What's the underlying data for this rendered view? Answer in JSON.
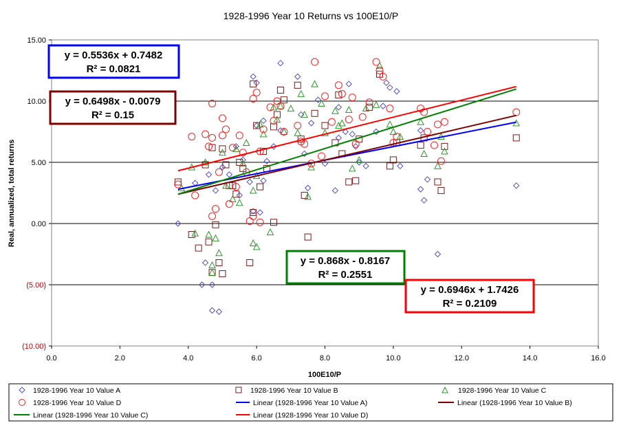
{
  "chart_data": {
    "type": "scatter",
    "title": "1928-1996 Year 10 Returns vs 100E10/P",
    "xlabel": "100E10/P",
    "ylabel": "Real, annualized, total returns",
    "xlim": [
      0,
      16
    ],
    "ylim": [
      -10,
      15
    ],
    "x_ticks": [
      {
        "v": 0,
        "label": "0.0"
      },
      {
        "v": 2,
        "label": "2.0"
      },
      {
        "v": 4,
        "label": "4.0"
      },
      {
        "v": 6,
        "label": "6.0"
      },
      {
        "v": 8,
        "label": "8.0"
      },
      {
        "v": 10,
        "label": "10.0"
      },
      {
        "v": 12,
        "label": "12.0"
      },
      {
        "v": 14,
        "label": "14.0"
      },
      {
        "v": 16,
        "label": "16.0"
      }
    ],
    "y_ticks": [
      {
        "v": 15,
        "label": "15.00"
      },
      {
        "v": 10,
        "label": "10.00"
      },
      {
        "v": 5,
        "label": "5.00"
      },
      {
        "v": 0,
        "label": "0.00"
      },
      {
        "v": -5,
        "label": "(5.00)"
      },
      {
        "v": -10,
        "label": "(10.00)"
      }
    ],
    "grid": "horizontal",
    "legend_position": "bottom",
    "colors": {
      "series_a": "#5050d0",
      "series_b": "#7b1a1a",
      "series_c": "#2a9a2a",
      "series_d": "#ff2020",
      "line_a": "#0000ff",
      "line_b": "#800000",
      "line_c": "#008000",
      "line_d": "#ff0000",
      "negative_tick": "#c00000"
    },
    "series": [
      {
        "name": "1928-1996 Year 10 Value A",
        "marker": "diamond",
        "color_key": "series_a",
        "x": [
          3.7,
          4.2,
          4.4,
          4.5,
          4.7,
          4.7,
          4.9,
          4.6,
          4.8,
          5.0,
          5.2,
          5.4,
          5.5,
          5.6,
          5.8,
          5.9,
          6.0,
          6.1,
          6.0,
          6.2,
          6.3,
          6.5,
          6.7,
          6.7,
          7.2,
          7.3,
          7.5,
          7.8,
          8.0,
          8.3,
          8.4,
          8.6,
          8.7,
          8.9,
          9.0,
          9.2,
          9.5,
          9.8,
          9.9,
          10.1,
          10.2,
          10.8,
          10.8,
          10.9,
          11.0,
          11.3,
          13.6,
          5.9,
          6.2,
          7.4,
          7.6,
          8.4,
          8.8,
          9.7
        ],
        "y": [
          0.0,
          3.3,
          -5.0,
          -3.2,
          -5.0,
          -7.1,
          -7.2,
          4.0,
          2.7,
          4.6,
          4.0,
          6.3,
          2.3,
          5.2,
          3.4,
          12.0,
          11.5,
          0.9,
          8.0,
          8.4,
          5.1,
          6.3,
          13.1,
          7.6,
          12.0,
          8.9,
          2.9,
          10.1,
          4.9,
          2.7,
          7.0,
          7.5,
          11.4,
          6.3,
          5.0,
          4.7,
          7.5,
          11.5,
          11.1,
          10.8,
          4.7,
          7.6,
          2.8,
          1.9,
          3.6,
          -2.5,
          3.1,
          1.0,
          3.5,
          5.7,
          8.2,
          9.5,
          7.3,
          9.6
        ]
      },
      {
        "name": "1928-1996 Year 10 Value B",
        "marker": "square",
        "color_key": "series_b",
        "x": [
          3.7,
          4.1,
          4.3,
          4.5,
          4.6,
          4.7,
          4.8,
          4.9,
          5.0,
          5.1,
          5.2,
          5.3,
          5.4,
          5.5,
          5.6,
          5.8,
          5.9,
          6.0,
          6.1,
          6.2,
          6.3,
          6.5,
          6.6,
          6.7,
          6.8,
          7.2,
          7.3,
          7.4,
          7.5,
          7.7,
          8.0,
          8.3,
          8.4,
          8.5,
          8.7,
          8.9,
          9.0,
          9.3,
          9.6,
          9.9,
          10.0,
          10.1,
          10.8,
          10.9,
          11.3,
          11.4,
          11.5,
          13.6,
          4.7,
          5.0,
          5.9,
          6.5
        ],
        "y": [
          3.4,
          -0.9,
          -2.0,
          4.8,
          -1.5,
          6.2,
          -0.1,
          -3.2,
          6.1,
          4.8,
          3.1,
          3.1,
          2.4,
          5.0,
          4.5,
          -3.2,
          11.4,
          8.0,
          3.0,
          5.9,
          4.5,
          7.9,
          8.9,
          10.9,
          10.1,
          11.3,
          6.9,
          2.3,
          -1.1,
          9.0,
          8.0,
          6.6,
          10.5,
          5.7,
          3.4,
          3.5,
          6.9,
          9.5,
          12.2,
          4.7,
          5.2,
          6.6,
          6.4,
          7.0,
          3.4,
          2.7,
          6.3,
          7.0,
          -4.0,
          -4.1,
          0.9,
          0.1
        ]
      },
      {
        "name": "1928-1996 Year 10 Value C",
        "marker": "triangle",
        "color_key": "series_c",
        "x": [
          3.8,
          4.1,
          4.2,
          4.5,
          4.6,
          4.7,
          4.8,
          4.9,
          5.0,
          5.1,
          5.3,
          5.4,
          5.5,
          5.6,
          5.7,
          5.9,
          6.0,
          6.1,
          6.2,
          6.4,
          6.5,
          6.6,
          6.7,
          6.8,
          7.0,
          7.2,
          7.3,
          7.4,
          7.6,
          7.7,
          7.9,
          8.0,
          8.3,
          8.4,
          8.5,
          8.7,
          8.8,
          9.0,
          9.2,
          9.5,
          9.6,
          9.9,
          10.0,
          10.2,
          10.8,
          10.9,
          11.3,
          11.4,
          11.5,
          13.6,
          4.7,
          5.9,
          6.0,
          7.5
        ],
        "y": [
          2.9,
          4.6,
          -0.8,
          5.0,
          -0.9,
          -3.4,
          -1.2,
          -2.4,
          5.8,
          3.1,
          2.0,
          6.1,
          1.7,
          4.9,
          6.6,
          -1.6,
          3.9,
          8.1,
          7.3,
          -0.7,
          9.5,
          8.5,
          9.6,
          7.5,
          9.4,
          7.4,
          10.6,
          8.9,
          4.6,
          11.4,
          9.8,
          7.4,
          9.2,
          8.0,
          8.2,
          9.3,
          4.5,
          5.2,
          9.4,
          9.7,
          12.9,
          8.1,
          7.5,
          7.1,
          8.3,
          5.7,
          4.7,
          7.1,
          5.9,
          8.2,
          -4.0,
          2.7,
          -1.9,
          2.2
        ]
      },
      {
        "name": "1928-1996 Year 10 Value D",
        "marker": "circle",
        "color_key": "series_d",
        "x": [
          3.7,
          4.1,
          4.2,
          4.5,
          4.6,
          4.7,
          4.7,
          4.8,
          4.9,
          5.0,
          5.0,
          5.1,
          5.2,
          5.3,
          5.4,
          5.5,
          5.6,
          5.7,
          5.8,
          5.9,
          6.0,
          6.1,
          6.1,
          6.2,
          6.4,
          6.5,
          6.6,
          6.7,
          6.8,
          7.2,
          7.3,
          7.4,
          7.6,
          7.7,
          7.9,
          8.0,
          8.2,
          8.4,
          8.5,
          8.7,
          8.8,
          8.9,
          9.1,
          9.3,
          9.5,
          9.6,
          9.7,
          9.9,
          10.0,
          10.1,
          10.8,
          10.9,
          11.0,
          11.2,
          11.3,
          11.4,
          11.5,
          13.6,
          4.7,
          5.9
        ],
        "y": [
          3.2,
          7.1,
          2.3,
          7.3,
          6.3,
          9.8,
          7.0,
          1.2,
          4.2,
          8.6,
          7.2,
          7.7,
          1.6,
          6.2,
          3.0,
          7.2,
          5.8,
          4.2,
          0.2,
          10.2,
          10.7,
          5.9,
          0.1,
          7.7,
          9.5,
          8.4,
          10.0,
          9.6,
          7.5,
          8.0,
          6.7,
          6.5,
          4.9,
          13.2,
          5.5,
          10.4,
          8.3,
          11.3,
          10.6,
          8.5,
          10.3,
          6.5,
          8.7,
          9.9,
          13.2,
          12.5,
          12.0,
          9.4,
          6.6,
          7.1,
          9.4,
          9.1,
          7.5,
          6.4,
          8.1,
          5.1,
          8.3,
          9.1,
          0.6,
          0.6
        ]
      }
    ],
    "trendlines": [
      {
        "name": "Linear (1928-1996 Year 10 Value A)",
        "slope": 0.5536,
        "intercept": 0.7482,
        "x_range": [
          3.7,
          13.6
        ],
        "color_key": "line_a",
        "equation": "y = 0.5536x + 0.7482",
        "r2": "R² = 0.0821"
      },
      {
        "name": "Linear (1928-1996 Year 10 Value B)",
        "slope": 0.6498,
        "intercept": -0.0079,
        "x_range": [
          3.7,
          13.6
        ],
        "color_key": "line_b",
        "equation": "y = 0.6498x - 0.0079",
        "r2": "R² = 0.15"
      },
      {
        "name": "Linear (1928-1996 Year 10 Value C)",
        "slope": 0.868,
        "intercept": -0.8167,
        "x_range": [
          3.7,
          13.6
        ],
        "color_key": "line_c",
        "equation": "y = 0.868x - 0.8167",
        "r2": "R² = 0.2551"
      },
      {
        "name": "Linear (1928-1996 Year 10 Value D)",
        "slope": 0.6946,
        "intercept": 1.7426,
        "x_range": [
          3.7,
          13.6
        ],
        "color_key": "line_d",
        "equation": "y = 0.6946x + 1.7426",
        "r2": "R² = 0.2109"
      }
    ]
  }
}
